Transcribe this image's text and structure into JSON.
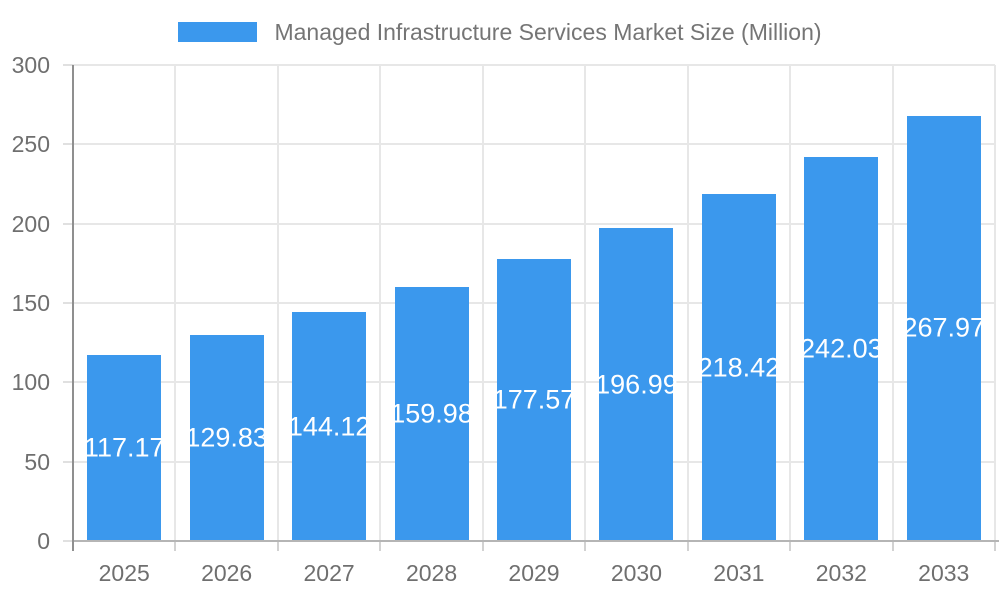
{
  "legend": {
    "label": "Managed Infrastructure Services Market Size (Million)"
  },
  "chart_data": {
    "type": "bar",
    "title": "Managed Infrastructure Services Market Size (Million)",
    "categories": [
      "2025",
      "2026",
      "2027",
      "2028",
      "2029",
      "2030",
      "2031",
      "2032",
      "2033"
    ],
    "series": [
      {
        "name": "Managed Infrastructure Services Market Size (Million)",
        "values": [
          117.17,
          129.83,
          144.12,
          159.98,
          177.57,
          196.99,
          218.42,
          242.03,
          267.97
        ]
      }
    ],
    "value_labels": [
      "117.17",
      "129.83",
      "144.12",
      "159.98",
      "177.57",
      "196.99",
      "218.42",
      "242.03",
      "267.97"
    ],
    "xlabel": "",
    "ylabel": "",
    "ylim": [
      0,
      300
    ],
    "yticks": [
      0,
      50,
      100,
      150,
      200,
      250,
      300
    ],
    "grid": true,
    "legend_position": "top-center",
    "value_label_position": "inside-center",
    "bar_color": "#3b98ed",
    "value_label_color": "#ffffff",
    "axis_label_color": "#6f6f6f",
    "legend_text_color": "#757575",
    "background_color": "#ffffff"
  }
}
